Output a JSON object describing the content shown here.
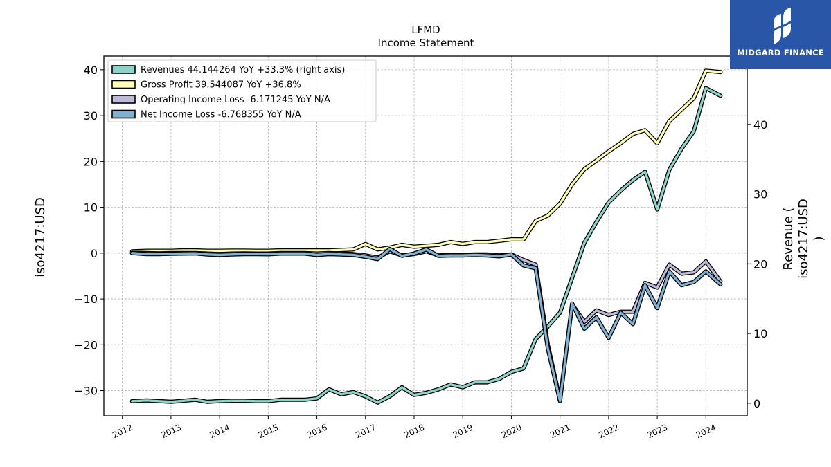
{
  "chart_data": {
    "type": "line",
    "title": "LFMD",
    "subtitle": "Income Statement",
    "ylabel_left": "iso4217:USD",
    "ylabel_right": "Revenue ( iso4217:USD )",
    "ylim_left": [
      -35.5,
      43.0
    ],
    "ylim_right": [
      -1.8,
      49.8
    ],
    "xlim": [
      2011.62,
      2024.85
    ],
    "left_ticks": [
      40,
      30,
      20,
      10,
      0,
      -10,
      -20,
      -30
    ],
    "left_tick_labels": [
      "40",
      "30",
      "20",
      "10",
      "0",
      "−10",
      "−20",
      "−30"
    ],
    "right_ticks": [
      40,
      30,
      20,
      10,
      0
    ],
    "right_tick_labels": [
      "40",
      "30",
      "20",
      "10",
      "0"
    ],
    "x_ticks": [
      2012,
      2013,
      2014,
      2015,
      2016,
      2017,
      2018,
      2019,
      2020,
      2021,
      2022,
      2023,
      2024
    ],
    "x_tick_labels": [
      "2012",
      "2013",
      "2014",
      "2015",
      "2016",
      "2017",
      "2018",
      "2019",
      "2020",
      "2021",
      "2022",
      "2023",
      "2024"
    ],
    "grid": true,
    "legend_position": "top-left",
    "legend": [
      "Revenues  44.144264 YoY +33.3% (right axis)",
      "Gross Profit  39.544087 YoY +36.8%",
      "Operating Income Loss  -6.171245 YoY N/A",
      "Net Income Loss  -6.768355 YoY N/A"
    ],
    "series": [
      {
        "name": "Revenues",
        "axis": "right",
        "color": "#8dd3c7",
        "points": [
          [
            2012.2,
            0.3
          ],
          [
            2012.5,
            0.4
          ],
          [
            2012.75,
            0.3
          ],
          [
            2013.0,
            0.2
          ],
          [
            2013.25,
            0.35
          ],
          [
            2013.5,
            0.5
          ],
          [
            2013.75,
            0.2
          ],
          [
            2014.0,
            0.3
          ],
          [
            2014.25,
            0.35
          ],
          [
            2014.5,
            0.35
          ],
          [
            2014.75,
            0.3
          ],
          [
            2015.0,
            0.3
          ],
          [
            2015.25,
            0.5
          ],
          [
            2015.5,
            0.5
          ],
          [
            2015.75,
            0.5
          ],
          [
            2016.0,
            0.7
          ],
          [
            2016.25,
            2.0
          ],
          [
            2016.5,
            1.3
          ],
          [
            2016.75,
            1.6
          ],
          [
            2017.0,
            1.0
          ],
          [
            2017.25,
            0.1
          ],
          [
            2017.5,
            1.0
          ],
          [
            2017.75,
            2.3
          ],
          [
            2018.0,
            1.2
          ],
          [
            2018.25,
            1.5
          ],
          [
            2018.5,
            2.0
          ],
          [
            2018.75,
            2.7
          ],
          [
            2019.0,
            2.3
          ],
          [
            2019.25,
            3.0
          ],
          [
            2019.5,
            3.0
          ],
          [
            2019.75,
            3.5
          ],
          [
            2020.0,
            4.5
          ],
          [
            2020.25,
            5.0
          ],
          [
            2020.5,
            9.2
          ],
          [
            2020.75,
            11.0
          ],
          [
            2021.0,
            13.0
          ],
          [
            2021.25,
            18.0
          ],
          [
            2021.5,
            23.0
          ],
          [
            2021.75,
            26.0
          ],
          [
            2022.0,
            28.8
          ],
          [
            2022.25,
            30.5
          ],
          [
            2022.5,
            32.0
          ],
          [
            2022.75,
            33.2
          ],
          [
            2023.0,
            27.8
          ],
          [
            2023.25,
            33.5
          ],
          [
            2023.5,
            36.5
          ],
          [
            2023.75,
            39.0
          ],
          [
            2024.0,
            45.2
          ],
          [
            2024.3,
            44.1
          ]
        ]
      },
      {
        "name": "Gross Profit",
        "axis": "left",
        "color": "#ffffb3",
        "points": [
          [
            2012.2,
            0.4
          ],
          [
            2012.5,
            0.5
          ],
          [
            2012.75,
            0.5
          ],
          [
            2013.0,
            0.5
          ],
          [
            2013.25,
            0.6
          ],
          [
            2013.5,
            0.6
          ],
          [
            2013.75,
            0.5
          ],
          [
            2014.0,
            0.5
          ],
          [
            2014.25,
            0.55
          ],
          [
            2014.5,
            0.55
          ],
          [
            2014.75,
            0.5
          ],
          [
            2015.0,
            0.5
          ],
          [
            2015.25,
            0.6
          ],
          [
            2015.5,
            0.6
          ],
          [
            2015.75,
            0.6
          ],
          [
            2016.0,
            0.6
          ],
          [
            2016.25,
            0.6
          ],
          [
            2016.5,
            0.7
          ],
          [
            2016.75,
            0.8
          ],
          [
            2017.0,
            2.0
          ],
          [
            2017.25,
            0.8
          ],
          [
            2017.5,
            1.2
          ],
          [
            2017.75,
            1.8
          ],
          [
            2018.0,
            1.4
          ],
          [
            2018.25,
            1.6
          ],
          [
            2018.5,
            1.8
          ],
          [
            2018.75,
            2.4
          ],
          [
            2019.0,
            2.0
          ],
          [
            2019.25,
            2.4
          ],
          [
            2019.5,
            2.4
          ],
          [
            2019.75,
            2.7
          ],
          [
            2020.0,
            3.0
          ],
          [
            2020.25,
            3.0
          ],
          [
            2020.5,
            7.0
          ],
          [
            2020.75,
            8.2
          ],
          [
            2021.0,
            10.8
          ],
          [
            2021.25,
            15.0
          ],
          [
            2021.5,
            18.3
          ],
          [
            2021.75,
            20.2
          ],
          [
            2022.0,
            22.2
          ],
          [
            2022.25,
            24.0
          ],
          [
            2022.5,
            26.0
          ],
          [
            2022.75,
            26.8
          ],
          [
            2023.0,
            24.0
          ],
          [
            2023.25,
            28.8
          ],
          [
            2023.5,
            31.3
          ],
          [
            2023.75,
            33.8
          ],
          [
            2024.0,
            39.8
          ],
          [
            2024.3,
            39.5
          ]
        ]
      },
      {
        "name": "Operating Income Loss",
        "axis": "left",
        "color": "#bebada",
        "points": [
          [
            2012.2,
            0.1
          ],
          [
            2012.5,
            0.0
          ],
          [
            2012.75,
            -0.05
          ],
          [
            2013.0,
            0.0
          ],
          [
            2013.25,
            0.0
          ],
          [
            2013.5,
            0.0
          ],
          [
            2013.75,
            -0.1
          ],
          [
            2014.0,
            -0.2
          ],
          [
            2014.25,
            -0.1
          ],
          [
            2014.5,
            -0.05
          ],
          [
            2014.75,
            -0.1
          ],
          [
            2015.0,
            -0.1
          ],
          [
            2015.25,
            0.0
          ],
          [
            2015.5,
            0.0
          ],
          [
            2015.75,
            0.0
          ],
          [
            2016.0,
            -0.1
          ],
          [
            2016.25,
            0.0
          ],
          [
            2016.5,
            -0.1
          ],
          [
            2016.75,
            -0.2
          ],
          [
            2017.0,
            -0.5
          ],
          [
            2017.25,
            -1.0
          ],
          [
            2017.5,
            0.4
          ],
          [
            2017.75,
            -0.5
          ],
          [
            2018.0,
            -0.2
          ],
          [
            2018.25,
            0.4
          ],
          [
            2018.5,
            -0.5
          ],
          [
            2018.75,
            -0.4
          ],
          [
            2019.0,
            -0.4
          ],
          [
            2019.25,
            -0.3
          ],
          [
            2019.5,
            -0.3
          ],
          [
            2019.75,
            -0.5
          ],
          [
            2020.0,
            -0.3
          ],
          [
            2020.25,
            -1.5
          ],
          [
            2020.5,
            -2.5
          ],
          [
            2020.75,
            -20.0
          ],
          [
            2021.0,
            -32.0
          ],
          [
            2021.25,
            -11.2
          ],
          [
            2021.5,
            -15.0
          ],
          [
            2021.75,
            -12.5
          ],
          [
            2022.0,
            -13.5
          ],
          [
            2022.25,
            -12.8
          ],
          [
            2022.5,
            -12.8
          ],
          [
            2022.75,
            -6.5
          ],
          [
            2023.0,
            -7.5
          ],
          [
            2023.25,
            -2.5
          ],
          [
            2023.5,
            -4.5
          ],
          [
            2023.75,
            -4.2
          ],
          [
            2024.0,
            -1.8
          ],
          [
            2024.3,
            -6.2
          ]
        ]
      },
      {
        "name": "Net Income Loss",
        "axis": "left",
        "color": "#80b1d3",
        "points": [
          [
            2012.2,
            0.0
          ],
          [
            2012.5,
            -0.2
          ],
          [
            2012.75,
            -0.2
          ],
          [
            2013.0,
            -0.15
          ],
          [
            2013.25,
            -0.1
          ],
          [
            2013.5,
            -0.05
          ],
          [
            2013.75,
            -0.3
          ],
          [
            2014.0,
            -0.4
          ],
          [
            2014.25,
            -0.3
          ],
          [
            2014.5,
            -0.2
          ],
          [
            2014.75,
            -0.2
          ],
          [
            2015.0,
            -0.25
          ],
          [
            2015.25,
            -0.1
          ],
          [
            2015.5,
            -0.1
          ],
          [
            2015.75,
            -0.1
          ],
          [
            2016.0,
            -0.4
          ],
          [
            2016.25,
            -0.2
          ],
          [
            2016.5,
            -0.3
          ],
          [
            2016.75,
            -0.4
          ],
          [
            2017.0,
            -0.8
          ],
          [
            2017.25,
            -1.3
          ],
          [
            2017.5,
            0.9
          ],
          [
            2017.75,
            -0.6
          ],
          [
            2018.0,
            -0.1
          ],
          [
            2018.25,
            0.8
          ],
          [
            2018.5,
            -0.6
          ],
          [
            2018.75,
            -0.5
          ],
          [
            2019.0,
            -0.5
          ],
          [
            2019.25,
            -0.4
          ],
          [
            2019.5,
            -0.5
          ],
          [
            2019.75,
            -0.7
          ],
          [
            2020.0,
            -0.3
          ],
          [
            2020.25,
            -2.7
          ],
          [
            2020.5,
            -3.3
          ],
          [
            2020.75,
            -20.8
          ],
          [
            2021.0,
            -32.3
          ],
          [
            2021.25,
            -11.0
          ],
          [
            2021.5,
            -16.5
          ],
          [
            2021.75,
            -14.0
          ],
          [
            2022.0,
            -18.5
          ],
          [
            2022.25,
            -13.0
          ],
          [
            2022.5,
            -15.5
          ],
          [
            2022.75,
            -7.0
          ],
          [
            2023.0,
            -12.0
          ],
          [
            2023.25,
            -4.0
          ],
          [
            2023.5,
            -7.0
          ],
          [
            2023.75,
            -6.3
          ],
          [
            2024.0,
            -4.0
          ],
          [
            2024.3,
            -6.8
          ]
        ]
      }
    ]
  },
  "logo": {
    "text": "MIDGARD FINANCE",
    "background": "#2a56a8"
  }
}
